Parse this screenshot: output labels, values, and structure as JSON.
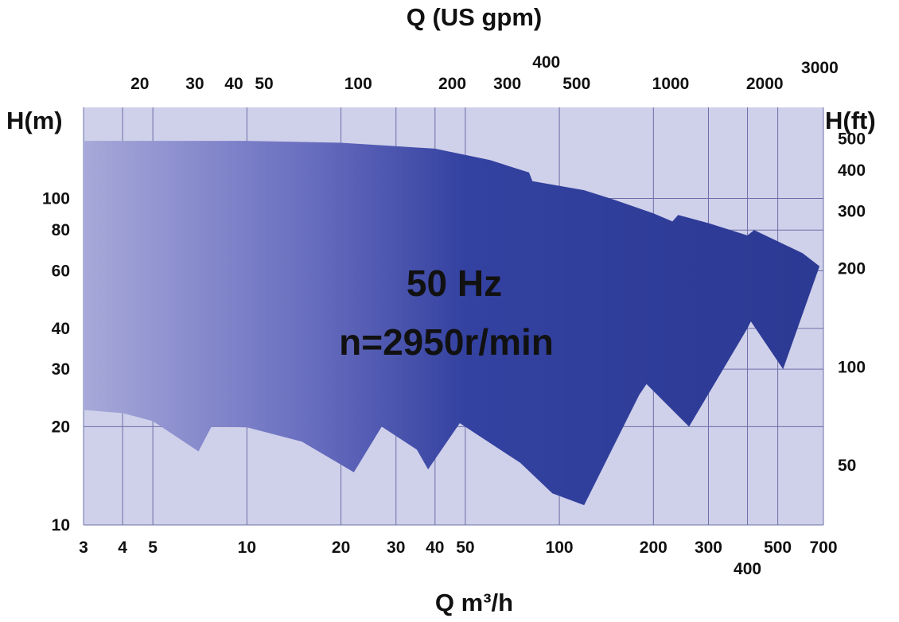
{
  "chart_data": {
    "type": "area",
    "title": "",
    "subtitle": "",
    "center_text": [
      "50 Hz",
      "n=2950r/min"
    ],
    "x_axis": {
      "label": "Q m³/h",
      "scale": "log",
      "range": [
        3,
        700
      ],
      "ticks": [
        3,
        4,
        5,
        10,
        20,
        30,
        40,
        50,
        100,
        200,
        300,
        400,
        500,
        700
      ]
    },
    "x2_axis": {
      "label": "Q (US gpm)",
      "scale": "log",
      "ticks": [
        20,
        30,
        40,
        50,
        100,
        200,
        300,
        400,
        500,
        1000,
        2000,
        3000
      ]
    },
    "y_axis": {
      "label": "H(m)",
      "scale": "log",
      "range": [
        10,
        190
      ],
      "ticks": [
        10,
        20,
        30,
        40,
        60,
        80,
        100
      ]
    },
    "y2_axis": {
      "label": "H(ft)",
      "scale": "log",
      "ticks": [
        50,
        100,
        200,
        300,
        400,
        500
      ]
    },
    "grid": true,
    "colors": {
      "plot_bg": "#cfd0ea",
      "grid": "#6d6fa8",
      "fill_light": "#a7a9d9",
      "fill_dark": "#2c3a94"
    },
    "series": [
      {
        "upper_envelope": [
          [
            3,
            150
          ],
          [
            10,
            150
          ],
          [
            20,
            148
          ],
          [
            40,
            142
          ],
          [
            60,
            131
          ],
          [
            80,
            120
          ],
          [
            82,
            113
          ],
          [
            120,
            106
          ],
          [
            150,
            99
          ],
          [
            200,
            90
          ],
          [
            230,
            85
          ],
          [
            240,
            89
          ],
          [
            300,
            84
          ],
          [
            400,
            77
          ],
          [
            420,
            80
          ],
          [
            600,
            68
          ],
          [
            680,
            62
          ]
        ],
        "lower_envelope": [
          [
            3,
            22.5
          ],
          [
            4,
            22
          ],
          [
            5,
            20.8
          ],
          [
            7,
            16.8
          ],
          [
            7.7,
            20
          ],
          [
            10,
            19.9
          ],
          [
            15,
            18
          ],
          [
            22,
            14.5
          ],
          [
            27,
            20
          ],
          [
            35,
            17
          ],
          [
            38,
            14.8
          ],
          [
            48,
            20.5
          ],
          [
            75,
            15.5
          ],
          [
            95,
            12.5
          ],
          [
            120,
            11.5
          ],
          [
            180,
            25
          ],
          [
            190,
            27
          ],
          [
            260,
            20
          ],
          [
            400,
            40
          ],
          [
            410,
            42
          ],
          [
            520,
            30
          ],
          [
            680,
            62
          ]
        ]
      }
    ]
  }
}
